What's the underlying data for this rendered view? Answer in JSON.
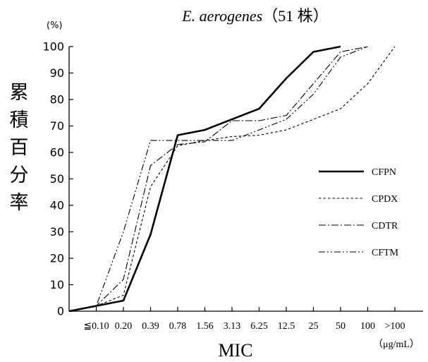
{
  "chart_data": {
    "type": "line",
    "title_italic": "E. aerogenes",
    "title_rest": "（51 株）",
    "y_unit": "(%)",
    "ylabel": "累積百分率",
    "xlabel": "MIC",
    "x_unit": "（μg/mL）",
    "categories": [
      "≦0.10",
      "0.20",
      "0.39",
      "0.78",
      "1.56",
      "3.13",
      "6.25",
      "12.5",
      "25",
      "50",
      "100",
      ">100"
    ],
    "ylim": [
      0,
      100
    ],
    "yticks": [
      0,
      10,
      20,
      30,
      40,
      50,
      60,
      70,
      80,
      90,
      100
    ],
    "legend_position": "right",
    "series": [
      {
        "name": "CFPN",
        "style": "solid-bold",
        "x": [
          "<0.10",
          "≦0.10",
          "0.20",
          "0.39",
          "0.78",
          "1.56",
          "3.13",
          "6.25",
          "12.5",
          "25",
          "50"
        ],
        "values": [
          0,
          2,
          4,
          29,
          66.5,
          68.5,
          72.5,
          76.5,
          88,
          98,
          100
        ]
      },
      {
        "name": "CPDX",
        "style": "dotted",
        "x": [
          "<0.10",
          "≦0.10",
          "0.20",
          "0.39",
          "0.78",
          "1.56",
          "3.13",
          "6.25",
          "12.5",
          "25",
          "50",
          "100",
          ">100"
        ],
        "values": [
          0,
          2,
          6,
          47,
          62.5,
          64.5,
          66,
          66.5,
          68.5,
          72.5,
          76.5,
          86,
          100
        ]
      },
      {
        "name": "CDTR",
        "style": "dash-dot",
        "x": [
          "<0.10",
          "≦0.10",
          "0.20",
          "0.39",
          "0.78",
          "1.56",
          "3.13",
          "6.25",
          "12.5",
          "25",
          "50",
          "100"
        ],
        "values": [
          0,
          2,
          12,
          55,
          63,
          64,
          72,
          72,
          74,
          86,
          98,
          100
        ]
      },
      {
        "name": "CFTM",
        "style": "dash-dot-dot",
        "x": [
          "<0.10",
          "≦0.10",
          "0.20",
          "0.39",
          "0.78",
          "1.56",
          "3.13",
          "6.25",
          "12.5",
          "25",
          "50",
          "100"
        ],
        "values": [
          0,
          2,
          30,
          64.5,
          64.5,
          64.5,
          64.5,
          68.5,
          72.5,
          82,
          96,
          100
        ]
      }
    ]
  }
}
